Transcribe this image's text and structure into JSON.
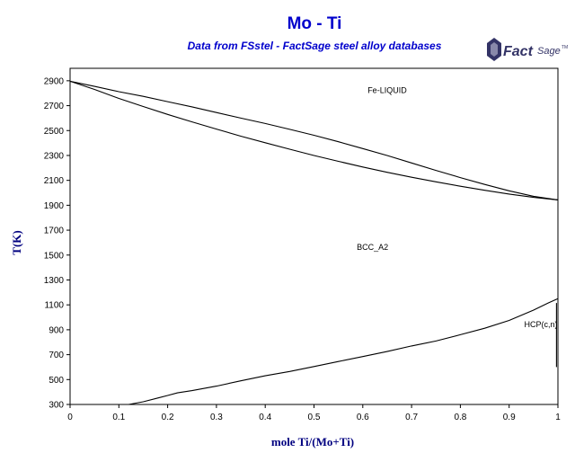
{
  "title": "Mo - Ti",
  "subtitle": "Data from FSstel - FactSage steel alloy databases",
  "logo": {
    "text": "FactSage",
    "mark": "TM",
    "color": "#333366"
  },
  "colors": {
    "title": "#0000cc",
    "axis_title": "#000080",
    "line": "#000000"
  },
  "chart_data": {
    "type": "line",
    "title": "Mo - Ti",
    "subtitle": "Data from FSstel - FactSage steel alloy databases",
    "xlabel": "mole Ti/(Mo+Ti)",
    "ylabel": "T(K)",
    "xlim": [
      0,
      1
    ],
    "ylim": [
      300,
      3000
    ],
    "xticks": [
      "0",
      "0.1",
      "0.2",
      "0.3",
      "0.4",
      "0.5",
      "0.6",
      "0.7",
      "0.8",
      "0.9",
      "1"
    ],
    "yticks": [
      "300",
      "500",
      "700",
      "900",
      "1100",
      "1300",
      "1500",
      "1700",
      "1900",
      "2100",
      "2300",
      "2500",
      "2700",
      "2900"
    ],
    "grid": false,
    "legend": "none",
    "series": [
      {
        "x": [
          0,
          0.05,
          0.1,
          0.15,
          0.2,
          0.25,
          0.3,
          0.35,
          0.4,
          0.45,
          0.5,
          0.55,
          0.6,
          0.65,
          0.7,
          0.75,
          0.8,
          0.85,
          0.9,
          0.95,
          1.0
        ],
        "y": [
          2896,
          2855,
          2812,
          2775,
          2732,
          2690,
          2645,
          2600,
          2557,
          2510,
          2462,
          2410,
          2355,
          2300,
          2240,
          2180,
          2122,
          2067,
          2016,
          1972,
          1943
        ]
      },
      {
        "x": [
          0,
          0.05,
          0.1,
          0.15,
          0.2,
          0.25,
          0.3,
          0.35,
          0.4,
          0.45,
          0.5,
          0.55,
          0.6,
          0.65,
          0.7,
          0.75,
          0.8,
          0.85,
          0.9,
          0.95,
          1.0
        ],
        "y": [
          2896,
          2830,
          2758,
          2693,
          2630,
          2570,
          2512,
          2455,
          2402,
          2350,
          2300,
          2253,
          2207,
          2165,
          2125,
          2088,
          2053,
          2020,
          1990,
          1963,
          1943
        ]
      },
      {
        "x": [
          0.12,
          0.15,
          0.18,
          0.2,
          0.22,
          0.25,
          0.3,
          0.35,
          0.4,
          0.45,
          0.5,
          0.55,
          0.6,
          0.65,
          0.7,
          0.75,
          0.8,
          0.85,
          0.9,
          0.95,
          0.98,
          1.0
        ],
        "y": [
          300,
          322,
          352,
          372,
          393,
          411,
          447,
          490,
          530,
          565,
          605,
          645,
          685,
          725,
          770,
          810,
          860,
          912,
          975,
          1058,
          1115,
          1150
        ]
      },
      {
        "x": [
          0.997,
          0.997
        ],
        "y": [
          1115,
          600
        ]
      }
    ],
    "annotations": [
      {
        "text": "Fe-LIQUID",
        "x": 0.65,
        "y": 2800
      },
      {
        "text": "BCC_A2",
        "x": 0.62,
        "y": 1540
      },
      {
        "text": "HCP(c,n)",
        "x": 0.965,
        "y": 920
      }
    ]
  }
}
